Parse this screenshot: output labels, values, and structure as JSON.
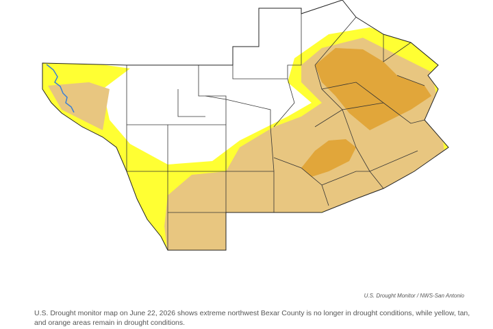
{
  "credit": "U.S. Drought Monitor  /  NWS-San Antonio",
  "caption": "U.S. Drought monitor map on June 22, 2026 shows extreme northwest Bexar County is no longer in drought conditions, while yellow, tan, and orange areas remain in drought conditions."
}
